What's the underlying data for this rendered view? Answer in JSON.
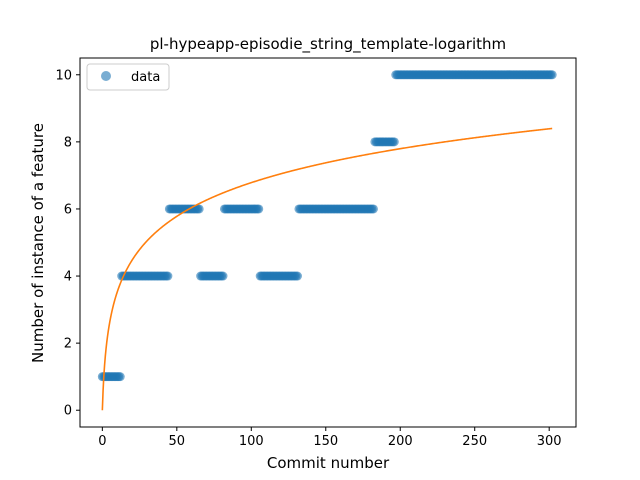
{
  "chart_data": {
    "type": "scatter",
    "title": "pl-hypeapp-episodie_string_template-logarithm",
    "xlabel": "Commit number",
    "ylabel": "Number of instance of a feature",
    "xlim": [
      -15,
      318
    ],
    "ylim": [
      -0.5,
      10.5
    ],
    "xticks": [
      0,
      50,
      100,
      150,
      200,
      250,
      300
    ],
    "yticks": [
      0,
      2,
      4,
      6,
      8,
      10
    ],
    "grid": false,
    "legend_position": "upper left",
    "colors": {
      "points": "#1f77b4",
      "fit": "#ff7f0e"
    },
    "series": [
      {
        "name": "data",
        "kind": "scatter",
        "segments": [
          {
            "x_from": 0,
            "x_to": 13,
            "y": 1
          },
          {
            "x_from": 13,
            "x_to": 45,
            "y": 4
          },
          {
            "x_from": 45,
            "x_to": 66,
            "y": 6
          },
          {
            "x_from": 66,
            "x_to": 82,
            "y": 4
          },
          {
            "x_from": 82,
            "x_to": 106,
            "y": 6
          },
          {
            "x_from": 106,
            "x_to": 132,
            "y": 4
          },
          {
            "x_from": 132,
            "x_to": 183,
            "y": 6
          },
          {
            "x_from": 183,
            "x_to": 197,
            "y": 8
          },
          {
            "x_from": 197,
            "x_to": 303,
            "y": 10
          }
        ]
      },
      {
        "kind": "line",
        "equation": "y = 1.47 * ln(x + 1)",
        "x_range": [
          0,
          302
        ]
      }
    ]
  }
}
